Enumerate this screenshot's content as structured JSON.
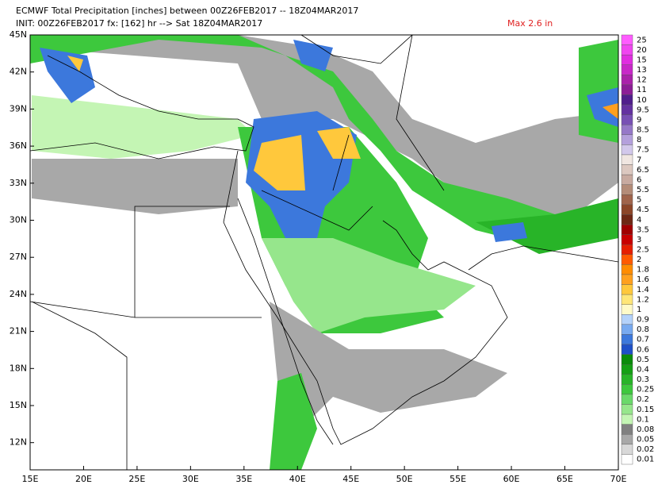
{
  "header": {
    "title": "ECMWF Total Precipitation [inches] between 00Z26FEB2017 -- 18Z04MAR2017",
    "subtitle": "INIT: 00Z26FEB2017 fx: [162] hr --> Sat 18Z04MAR2017",
    "max_label": "Max 2.6 in"
  },
  "map": {
    "lat_labels": [
      "45N",
      "42N",
      "39N",
      "36N",
      "33N",
      "30N",
      "27N",
      "24N",
      "21N",
      "18N",
      "15N",
      "12N"
    ],
    "lon_labels": [
      "15E",
      "20E",
      "25E",
      "30E",
      "35E",
      "40E",
      "45E",
      "50E",
      "55E",
      "60E",
      "65E",
      "70E"
    ]
  },
  "colorbar": {
    "levels": [
      {
        "label": "25",
        "color": "#ff5cff"
      },
      {
        "label": "20",
        "color": "#f046f0"
      },
      {
        "label": "15",
        "color": "#e02ee0"
      },
      {
        "label": "13",
        "color": "#c828c8"
      },
      {
        "label": "12",
        "color": "#aa22aa"
      },
      {
        "label": "11",
        "color": "#8c1e96"
      },
      {
        "label": "10",
        "color": "#501e8c"
      },
      {
        "label": "9.5",
        "color": "#6432a0"
      },
      {
        "label": "9",
        "color": "#7850b4"
      },
      {
        "label": "8.5",
        "color": "#9678c8"
      },
      {
        "label": "8",
        "color": "#b4a0dc"
      },
      {
        "label": "7.5",
        "color": "#d2c8eb"
      },
      {
        "label": "7",
        "color": "#f0e6e1"
      },
      {
        "label": "6.5",
        "color": "#dcc8c0"
      },
      {
        "label": "6",
        "color": "#c8aaa0"
      },
      {
        "label": "5.5",
        "color": "#b48c78"
      },
      {
        "label": "5",
        "color": "#a0644b"
      },
      {
        "label": "4.5",
        "color": "#8c4628"
      },
      {
        "label": "4",
        "color": "#6e2814"
      },
      {
        "label": "3.5",
        "color": "#a00000"
      },
      {
        "label": "3",
        "color": "#c80000"
      },
      {
        "label": "2.5",
        "color": "#e61e00"
      },
      {
        "label": "2",
        "color": "#ff5a00"
      },
      {
        "label": "1.8",
        "color": "#ff8c00"
      },
      {
        "label": "1.6",
        "color": "#ffa01e"
      },
      {
        "label": "1.4",
        "color": "#ffc83c"
      },
      {
        "label": "1.2",
        "color": "#ffe678"
      },
      {
        "label": "1",
        "color": "#fffac8"
      },
      {
        "label": "0.9",
        "color": "#b4d2fa"
      },
      {
        "label": "0.8",
        "color": "#78aaf0"
      },
      {
        "label": "0.7",
        "color": "#3c78dc"
      },
      {
        "label": "0.6",
        "color": "#1e50c8"
      },
      {
        "label": "0.5",
        "color": "#0a8c0a"
      },
      {
        "label": "0.4",
        "color": "#14a014"
      },
      {
        "label": "0.3",
        "color": "#28b428"
      },
      {
        "label": "0.25",
        "color": "#3dc83d"
      },
      {
        "label": "0.2",
        "color": "#6ad96a"
      },
      {
        "label": "0.15",
        "color": "#96e68c"
      },
      {
        "label": "0.1",
        "color": "#c4f5b4"
      },
      {
        "label": "0.08",
        "color": "#808080"
      },
      {
        "label": "0.05",
        "color": "#a8a8a8"
      },
      {
        "label": "0.02",
        "color": "#d8d8d8"
      },
      {
        "label": "0.01",
        "color": "#ffffff"
      }
    ]
  }
}
